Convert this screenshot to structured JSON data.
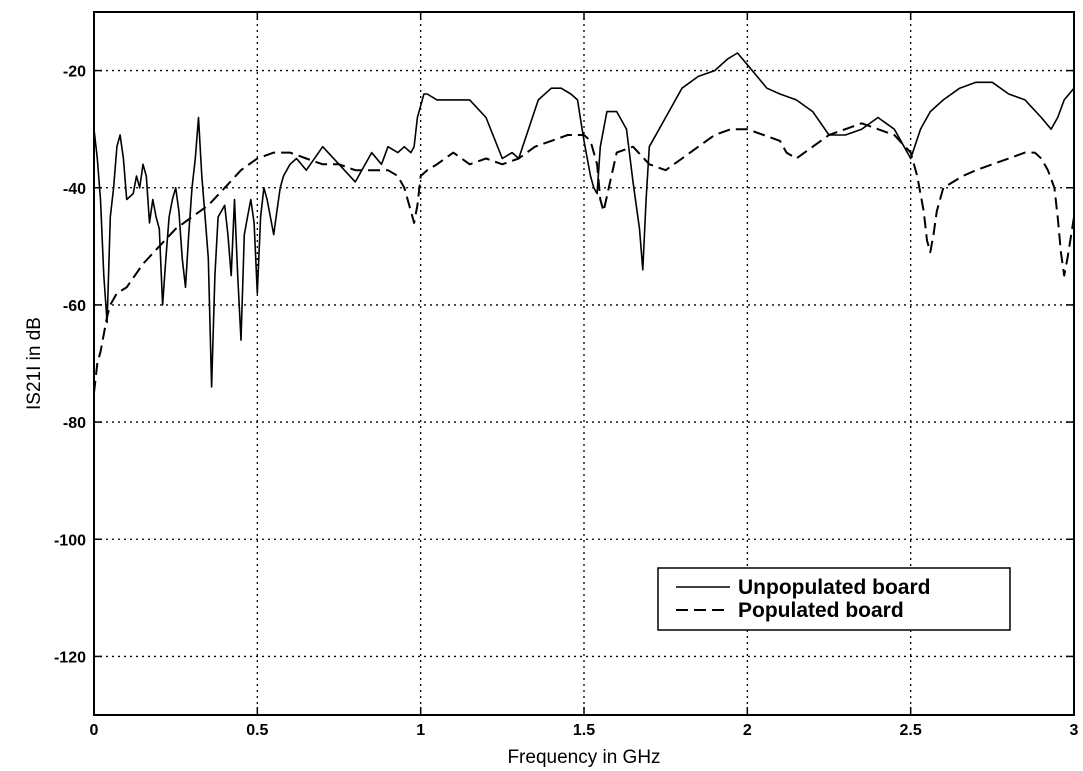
{
  "chart_data": {
    "type": "line",
    "title": "",
    "xlabel": "Frequency in GHz",
    "ylabel": "IS21I in dB",
    "xlim": [
      0,
      3
    ],
    "ylim": [
      -130,
      -10
    ],
    "xticks": [
      0,
      0.5,
      1,
      1.5,
      2,
      2.5,
      3
    ],
    "xtick_labels": [
      "0",
      "0.5",
      "1",
      "1.5",
      "2",
      "2.5",
      "3"
    ],
    "yticks": [
      -120,
      -100,
      -80,
      -60,
      -40,
      -20
    ],
    "ytick_labels": [
      "-120",
      "-100",
      "-80",
      "-60",
      "-40",
      "-20"
    ],
    "grid": true,
    "grid_style": "dotted",
    "legend_position": "lower-right",
    "series": [
      {
        "name": "Unpopulated board",
        "style": "solid",
        "color": "#000000",
        "x": [
          0.0,
          0.01,
          0.02,
          0.03,
          0.04,
          0.05,
          0.06,
          0.07,
          0.08,
          0.09,
          0.1,
          0.12,
          0.13,
          0.14,
          0.15,
          0.16,
          0.17,
          0.18,
          0.19,
          0.2,
          0.21,
          0.22,
          0.23,
          0.24,
          0.25,
          0.26,
          0.27,
          0.28,
          0.29,
          0.3,
          0.31,
          0.32,
          0.33,
          0.34,
          0.35,
          0.36,
          0.37,
          0.38,
          0.4,
          0.41,
          0.42,
          0.43,
          0.44,
          0.45,
          0.46,
          0.47,
          0.48,
          0.49,
          0.5,
          0.51,
          0.52,
          0.53,
          0.54,
          0.55,
          0.56,
          0.57,
          0.58,
          0.6,
          0.62,
          0.65,
          0.7,
          0.75,
          0.8,
          0.85,
          0.88,
          0.9,
          0.93,
          0.95,
          0.97,
          0.98,
          0.99,
          1.0,
          1.01,
          1.02,
          1.05,
          1.1,
          1.15,
          1.2,
          1.25,
          1.28,
          1.3,
          1.33,
          1.36,
          1.4,
          1.43,
          1.46,
          1.48,
          1.5,
          1.52,
          1.53,
          1.54,
          1.55,
          1.57,
          1.6,
          1.63,
          1.65,
          1.67,
          1.68,
          1.69,
          1.7,
          1.73,
          1.76,
          1.8,
          1.85,
          1.9,
          1.94,
          1.97,
          2.0,
          2.03,
          2.06,
          2.1,
          2.15,
          2.2,
          2.25,
          2.3,
          2.35,
          2.4,
          2.45,
          2.48,
          2.5,
          2.53,
          2.56,
          2.6,
          2.65,
          2.7,
          2.75,
          2.8,
          2.85,
          2.9,
          2.93,
          2.95,
          2.97,
          3.0
        ],
        "y": [
          -30,
          -35,
          -42,
          -55,
          -63,
          -45,
          -40,
          -33,
          -31,
          -35,
          -42,
          -41,
          -38,
          -40,
          -36,
          -38,
          -46,
          -42,
          -45,
          -47,
          -60,
          -52,
          -45,
          -42,
          -40,
          -44,
          -52,
          -57,
          -48,
          -40,
          -35,
          -28,
          -38,
          -45,
          -52,
          -74,
          -55,
          -45,
          -43,
          -48,
          -55,
          -42,
          -55,
          -66,
          -48,
          -45,
          -42,
          -46,
          -58,
          -45,
          -40,
          -42,
          -45,
          -48,
          -44,
          -40,
          -38,
          -36,
          -35,
          -37,
          -33,
          -36,
          -39,
          -34,
          -36,
          -33,
          -34,
          -33,
          -34,
          -33,
          -28,
          -26,
          -24,
          -24,
          -25,
          -25,
          -25,
          -28,
          -35,
          -34,
          -35,
          -30,
          -25,
          -23,
          -23,
          -24,
          -25,
          -32,
          -38,
          -40,
          -41,
          -33,
          -27,
          -27,
          -30,
          -39,
          -47,
          -54,
          -42,
          -33,
          -30,
          -27,
          -23,
          -21,
          -20,
          -18,
          -17,
          -19,
          -21,
          -23,
          -24,
          -25,
          -27,
          -31,
          -31,
          -30,
          -28,
          -30,
          -33,
          -35,
          -30,
          -27,
          -25,
          -23,
          -22,
          -22,
          -24,
          -25,
          -28,
          -30,
          -28,
          -25,
          -23
        ]
      },
      {
        "name": "Populated board",
        "style": "dashed",
        "color": "#000000",
        "x": [
          0.0,
          0.01,
          0.02,
          0.03,
          0.04,
          0.05,
          0.07,
          0.1,
          0.15,
          0.2,
          0.25,
          0.3,
          0.35,
          0.4,
          0.45,
          0.5,
          0.55,
          0.6,
          0.65,
          0.7,
          0.75,
          0.8,
          0.85,
          0.9,
          0.93,
          0.95,
          0.97,
          0.98,
          0.99,
          1.0,
          1.02,
          1.05,
          1.1,
          1.15,
          1.2,
          1.25,
          1.3,
          1.35,
          1.4,
          1.45,
          1.5,
          1.52,
          1.54,
          1.55,
          1.56,
          1.58,
          1.6,
          1.65,
          1.7,
          1.75,
          1.8,
          1.85,
          1.9,
          1.95,
          2.0,
          2.05,
          2.1,
          2.12,
          2.15,
          2.2,
          2.25,
          2.3,
          2.35,
          2.4,
          2.45,
          2.5,
          2.52,
          2.54,
          2.55,
          2.56,
          2.57,
          2.58,
          2.6,
          2.63,
          2.66,
          2.7,
          2.75,
          2.8,
          2.85,
          2.88,
          2.9,
          2.92,
          2.94,
          2.95,
          2.96,
          2.97,
          2.98,
          3.0
        ],
        "y": [
          -75,
          -70,
          -68,
          -65,
          -62,
          -60,
          -58,
          -57,
          -53,
          -50,
          -47,
          -45,
          -43,
          -40,
          -37,
          -35,
          -34,
          -34,
          -35,
          -36,
          -36,
          -37,
          -37,
          -37,
          -38,
          -40,
          -44,
          -46,
          -43,
          -38,
          -37,
          -36,
          -34,
          -36,
          -35,
          -36,
          -35,
          -33,
          -32,
          -31,
          -31,
          -32,
          -36,
          -42,
          -44,
          -39,
          -34,
          -33,
          -36,
          -37,
          -35,
          -33,
          -31,
          -30,
          -30,
          -31,
          -32,
          -34,
          -35,
          -33,
          -31,
          -30,
          -29,
          -30,
          -31,
          -34,
          -38,
          -44,
          -49,
          -51,
          -48,
          -44,
          -40,
          -39,
          -38,
          -37,
          -36,
          -35,
          -34,
          -34,
          -35,
          -37,
          -40,
          -45,
          -51,
          -55,
          -52,
          -45
        ]
      }
    ]
  }
}
